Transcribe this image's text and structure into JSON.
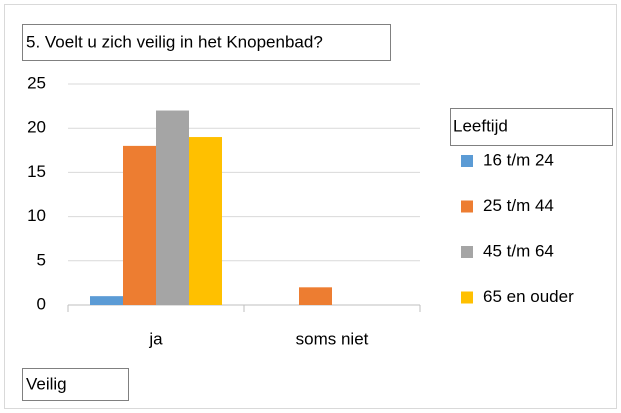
{
  "chart_data": {
    "type": "bar",
    "title": "5. Voelt u zich veilig in het Knopenbad?",
    "x_label": "Veilig",
    "legend_title": "Leeftijd",
    "legend_position": "right",
    "categories": [
      "ja",
      "soms niet"
    ],
    "series": [
      {
        "name": "16 t/m 24",
        "color": "#5b9bd5",
        "values": [
          1,
          0
        ]
      },
      {
        "name": "25 t/m 44",
        "color": "#ed7d31",
        "values": [
          18,
          2
        ]
      },
      {
        "name": "45 t/m 64",
        "color": "#a5a5a5",
        "values": [
          22,
          0
        ]
      },
      {
        "name": "65 en ouder",
        "color": "#ffc000",
        "values": [
          19,
          0
        ]
      }
    ],
    "ylim": [
      0,
      25
    ],
    "yticks": [
      0,
      5,
      10,
      15,
      20,
      25
    ],
    "grid": true
  }
}
